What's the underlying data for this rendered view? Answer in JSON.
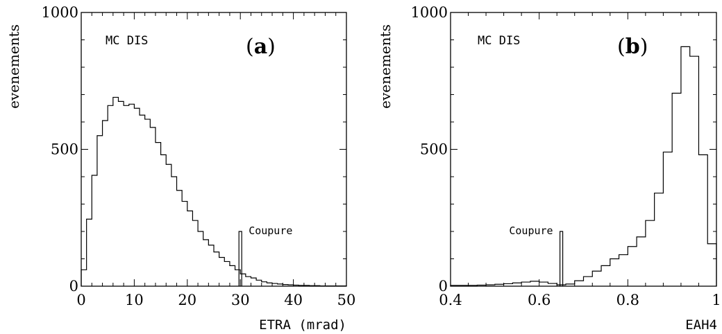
{
  "chart_data": [
    {
      "type": "histogram",
      "panel_label": "a",
      "annotation": "MC DIS",
      "xlabel": "ETRA (mrad)",
      "ylabel": "evenements",
      "xlim": [
        0,
        50
      ],
      "ylim": [
        0,
        1000
      ],
      "xticks": [
        0,
        10,
        20,
        30,
        40,
        50
      ],
      "xtick_labels": [
        "0",
        "10",
        "20",
        "30",
        "40",
        "50"
      ],
      "yticks": [
        0,
        500,
        1000
      ],
      "ytick_labels": [
        "0",
        "500",
        "1000"
      ],
      "bin_width": 1,
      "bin_start": 0,
      "values": [
        60,
        245,
        405,
        550,
        605,
        660,
        690,
        675,
        660,
        665,
        650,
        625,
        610,
        580,
        525,
        480,
        445,
        400,
        350,
        310,
        275,
        240,
        200,
        170,
        150,
        125,
        105,
        90,
        75,
        60,
        45,
        35,
        30,
        22,
        16,
        12,
        10,
        8,
        6,
        5,
        4,
        3,
        3,
        2,
        2,
        1,
        1,
        1,
        1,
        1
      ],
      "cut": {
        "x": 30,
        "height": 200,
        "label": "Coupure"
      }
    },
    {
      "type": "histogram",
      "panel_label": "b",
      "annotation": "MC DIS",
      "xlabel": "EAH4",
      "ylabel": "evenements",
      "xlim": [
        0.4,
        1.0
      ],
      "ylim": [
        0,
        1000
      ],
      "xticks": [
        0.4,
        0.6,
        0.8,
        1.0
      ],
      "xtick_labels": [
        "0.4",
        "0.6",
        "0.8",
        "1"
      ],
      "yticks": [
        0,
        500,
        1000
      ],
      "ytick_labels": [
        "0",
        "500",
        "1000"
      ],
      "bin_width": 0.02,
      "bin_start": 0.4,
      "values": [
        3,
        3,
        3,
        4,
        5,
        7,
        9,
        12,
        15,
        18,
        15,
        10,
        5,
        8,
        20,
        35,
        55,
        75,
        100,
        115,
        145,
        180,
        240,
        340,
        490,
        705,
        875,
        840,
        480,
        155
      ],
      "cut": {
        "x": 0.65,
        "height": 200,
        "label": "Coupure"
      }
    }
  ]
}
